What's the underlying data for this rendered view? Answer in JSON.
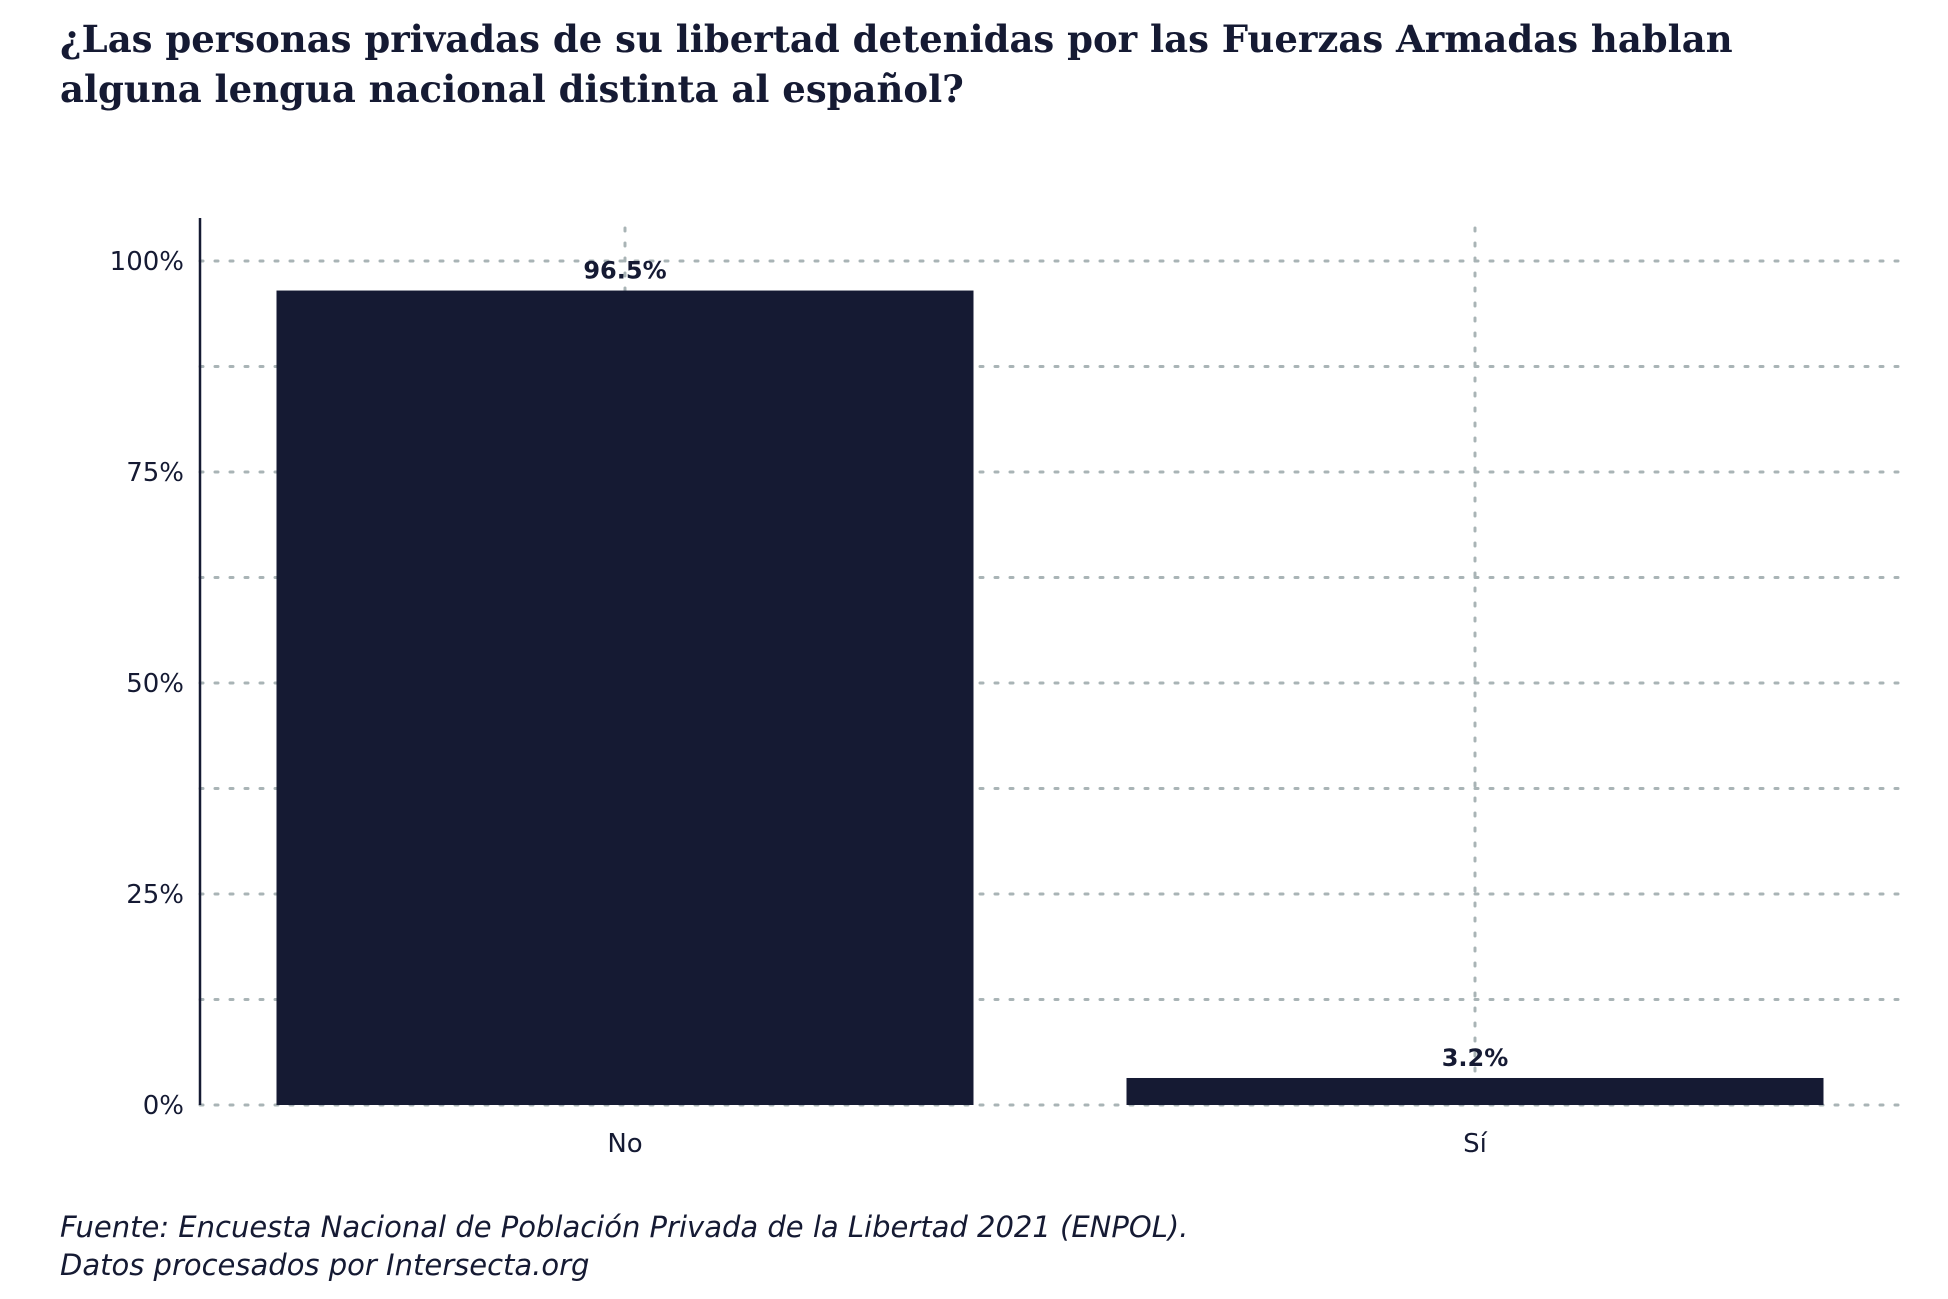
{
  "title": {
    "line1": "¿Las personas privadas de su libertad detenidas por las Fuerzas Armadas hablan",
    "line2": "alguna lengua nacional distinta al español?"
  },
  "caption": {
    "line1": "Fuente: Encuesta Nacional de Población Privada de la Libertad 2021 (ENPOL).",
    "line2": "Datos procesados por Intersecta.org"
  },
  "colors": {
    "bar": "#151a33",
    "grid": "#a9b4b6",
    "axis": "#151a33",
    "text": "#151a33"
  },
  "chart_data": {
    "type": "bar",
    "categories": [
      "No",
      "Sí"
    ],
    "values": [
      96.5,
      3.2
    ],
    "value_labels": [
      "96.5%",
      "3.2%"
    ],
    "ylim": [
      0,
      100
    ],
    "yticks": [
      0,
      25,
      50,
      75,
      100
    ],
    "ytick_labels": [
      "0%",
      "25%",
      "50%",
      "75%",
      "100%"
    ],
    "minor_gridlines": [
      12.5,
      37.5,
      62.5,
      87.5
    ],
    "grid": true,
    "grid_style": "dotted",
    "xlabel": "",
    "ylabel": ""
  }
}
